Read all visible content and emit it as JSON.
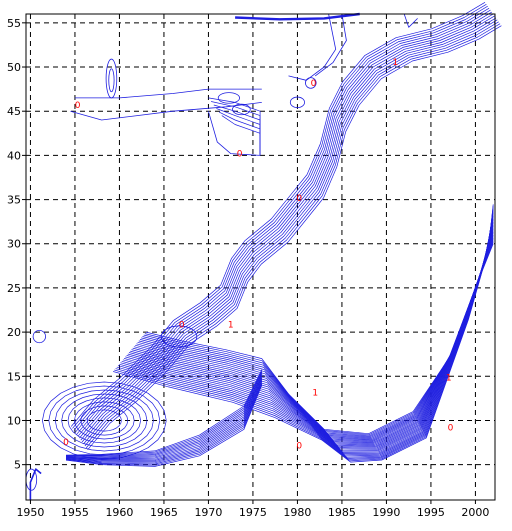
{
  "chart_data": {
    "type": "contour",
    "title": "",
    "xlabel": "",
    "ylabel": "",
    "xlim": [
      1949.5,
      2002.2
    ],
    "ylim": [
      1,
      56
    ],
    "xticks": [
      1950,
      1955,
      1960,
      1965,
      1970,
      1975,
      1980,
      1985,
      1990,
      1995,
      2000
    ],
    "yticks": [
      5,
      10,
      15,
      20,
      25,
      30,
      35,
      40,
      45,
      50,
      55
    ],
    "grid": true,
    "grid_style": "dashed",
    "line_color": "#1f1fe0",
    "label_color": "#ff0000",
    "contour_labels": [
      {
        "x": 1954.0,
        "y": 7.7,
        "text": "0"
      },
      {
        "x": 1955.3,
        "y": 45.8,
        "text": "0"
      },
      {
        "x": 1967.0,
        "y": 21.0,
        "text": "0"
      },
      {
        "x": 1972.5,
        "y": 21.0,
        "text": "1"
      },
      {
        "x": 1973.5,
        "y": 40.3,
        "text": "0"
      },
      {
        "x": 1980.2,
        "y": 7.3,
        "text": "0"
      },
      {
        "x": 1980.2,
        "y": 35.3,
        "text": "0"
      },
      {
        "x": 1981.8,
        "y": 48.3,
        "text": "0"
      },
      {
        "x": 1982.0,
        "y": 13.3,
        "text": "1"
      },
      {
        "x": 1991.0,
        "y": 50.7,
        "text": "1"
      },
      {
        "x": 1997.0,
        "y": 15.0,
        "text": "1"
      },
      {
        "x": 1997.2,
        "y": 9.3,
        "text": "0"
      }
    ]
  }
}
